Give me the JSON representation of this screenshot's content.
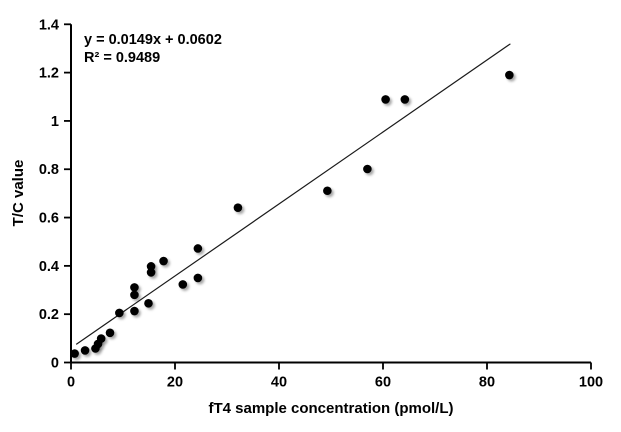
{
  "chart_data": {
    "type": "scatter",
    "title": "",
    "xlabel": "fT4 sample concentration (pmol/L)",
    "ylabel": "T/C value",
    "xlim": [
      0,
      100
    ],
    "ylim": [
      0,
      1.4
    ],
    "x_ticks": [
      0,
      20,
      40,
      60,
      80,
      100
    ],
    "x_tick_labels": [
      "0",
      "20",
      "40",
      "60",
      "80",
      "100"
    ],
    "y_ticks": [
      0,
      0.2,
      0.4,
      0.6,
      0.8,
      1,
      1.2,
      1.4
    ],
    "y_tick_labels": [
      "0",
      "0.2",
      "0.4",
      "0.6",
      "0.8",
      "1",
      "1.2",
      "1.4"
    ],
    "grid": false,
    "legend": false,
    "annotation": {
      "equation": "y = 0.0149x + 0.0602",
      "r_squared": "R² = 0.9489"
    },
    "trendline": {
      "slope": 0.0149,
      "intercept": 0.0602,
      "x_start": 1.0,
      "x_end": 84.5
    },
    "points": [
      [
        0.7,
        0.037
      ],
      [
        2.7,
        0.05
      ],
      [
        4.7,
        0.058
      ],
      [
        5.2,
        0.077
      ],
      [
        5.8,
        0.099
      ],
      [
        7.5,
        0.123
      ],
      [
        9.3,
        0.205
      ],
      [
        12.2,
        0.213
      ],
      [
        12.2,
        0.28
      ],
      [
        12.2,
        0.311
      ],
      [
        14.9,
        0.245
      ],
      [
        15.4,
        0.373
      ],
      [
        15.4,
        0.398
      ],
      [
        17.8,
        0.42
      ],
      [
        21.5,
        0.323
      ],
      [
        24.4,
        0.35
      ],
      [
        24.4,
        0.472
      ],
      [
        32.1,
        0.641
      ],
      [
        49.3,
        0.711
      ],
      [
        57.0,
        0.801
      ],
      [
        60.5,
        1.089
      ],
      [
        64.2,
        1.089
      ],
      [
        84.3,
        1.19
      ]
    ],
    "marker_color": "#000000",
    "line_color": "#1a1a1a",
    "axis_color": "#000000",
    "background_color": "#ffffff"
  }
}
